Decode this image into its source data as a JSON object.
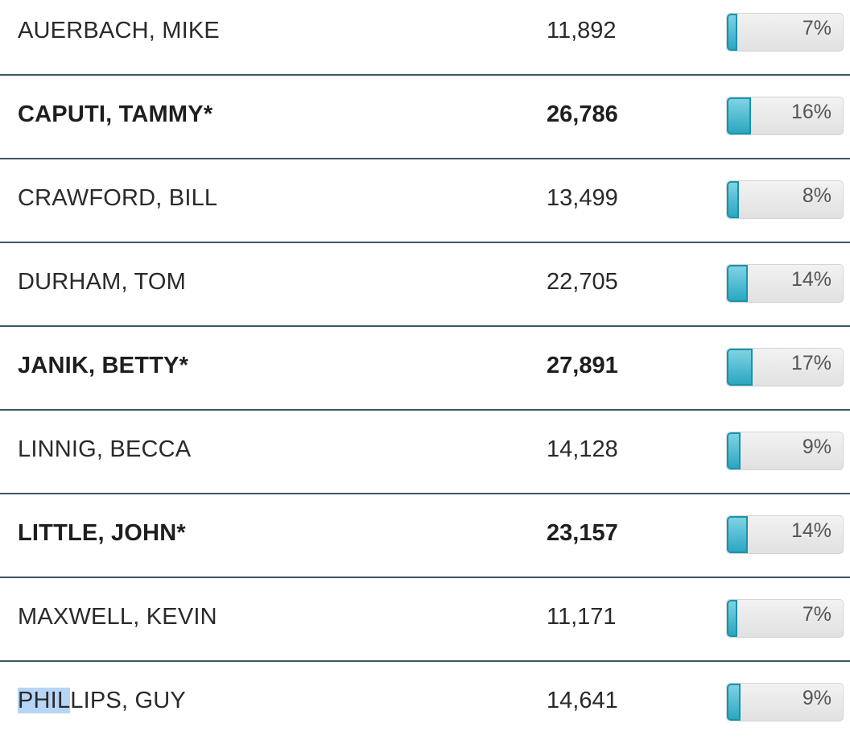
{
  "results": [
    {
      "name": "AUERBACH, MIKE",
      "votes": "11,892",
      "percent_label": "7%",
      "percent": 7,
      "winner": false
    },
    {
      "name": "CAPUTI, TAMMY*",
      "votes": "26,786",
      "percent_label": "16%",
      "percent": 16,
      "winner": true
    },
    {
      "name": "CRAWFORD, BILL",
      "votes": "13,499",
      "percent_label": "8%",
      "percent": 8,
      "winner": false
    },
    {
      "name": "DURHAM, TOM",
      "votes": "22,705",
      "percent_label": "14%",
      "percent": 14,
      "winner": false
    },
    {
      "name": "JANIK, BETTY*",
      "votes": "27,891",
      "percent_label": "17%",
      "percent": 17,
      "winner": true
    },
    {
      "name": "LINNIG, BECCA",
      "votes": "14,128",
      "percent_label": "9%",
      "percent": 9,
      "winner": false
    },
    {
      "name": "LITTLE, JOHN*",
      "votes": "23,157",
      "percent_label": "14%",
      "percent": 14,
      "winner": true
    },
    {
      "name": "MAXWELL, KEVIN",
      "votes": "11,171",
      "percent_label": "7%",
      "percent": 7,
      "winner": false
    },
    {
      "name": "PHILLIPS, GUY",
      "votes": "14,641",
      "percent_label": "9%",
      "percent": 9,
      "winner": false
    }
  ],
  "selection": {
    "row": 8,
    "selected_text": "PHIL",
    "rest_text": "LIPS, GUY"
  },
  "colors": {
    "bar_fill": "#2aa7c2",
    "bar_border": "#1894ad",
    "divider": "#3e5766",
    "selection": "#b6d5f7"
  }
}
